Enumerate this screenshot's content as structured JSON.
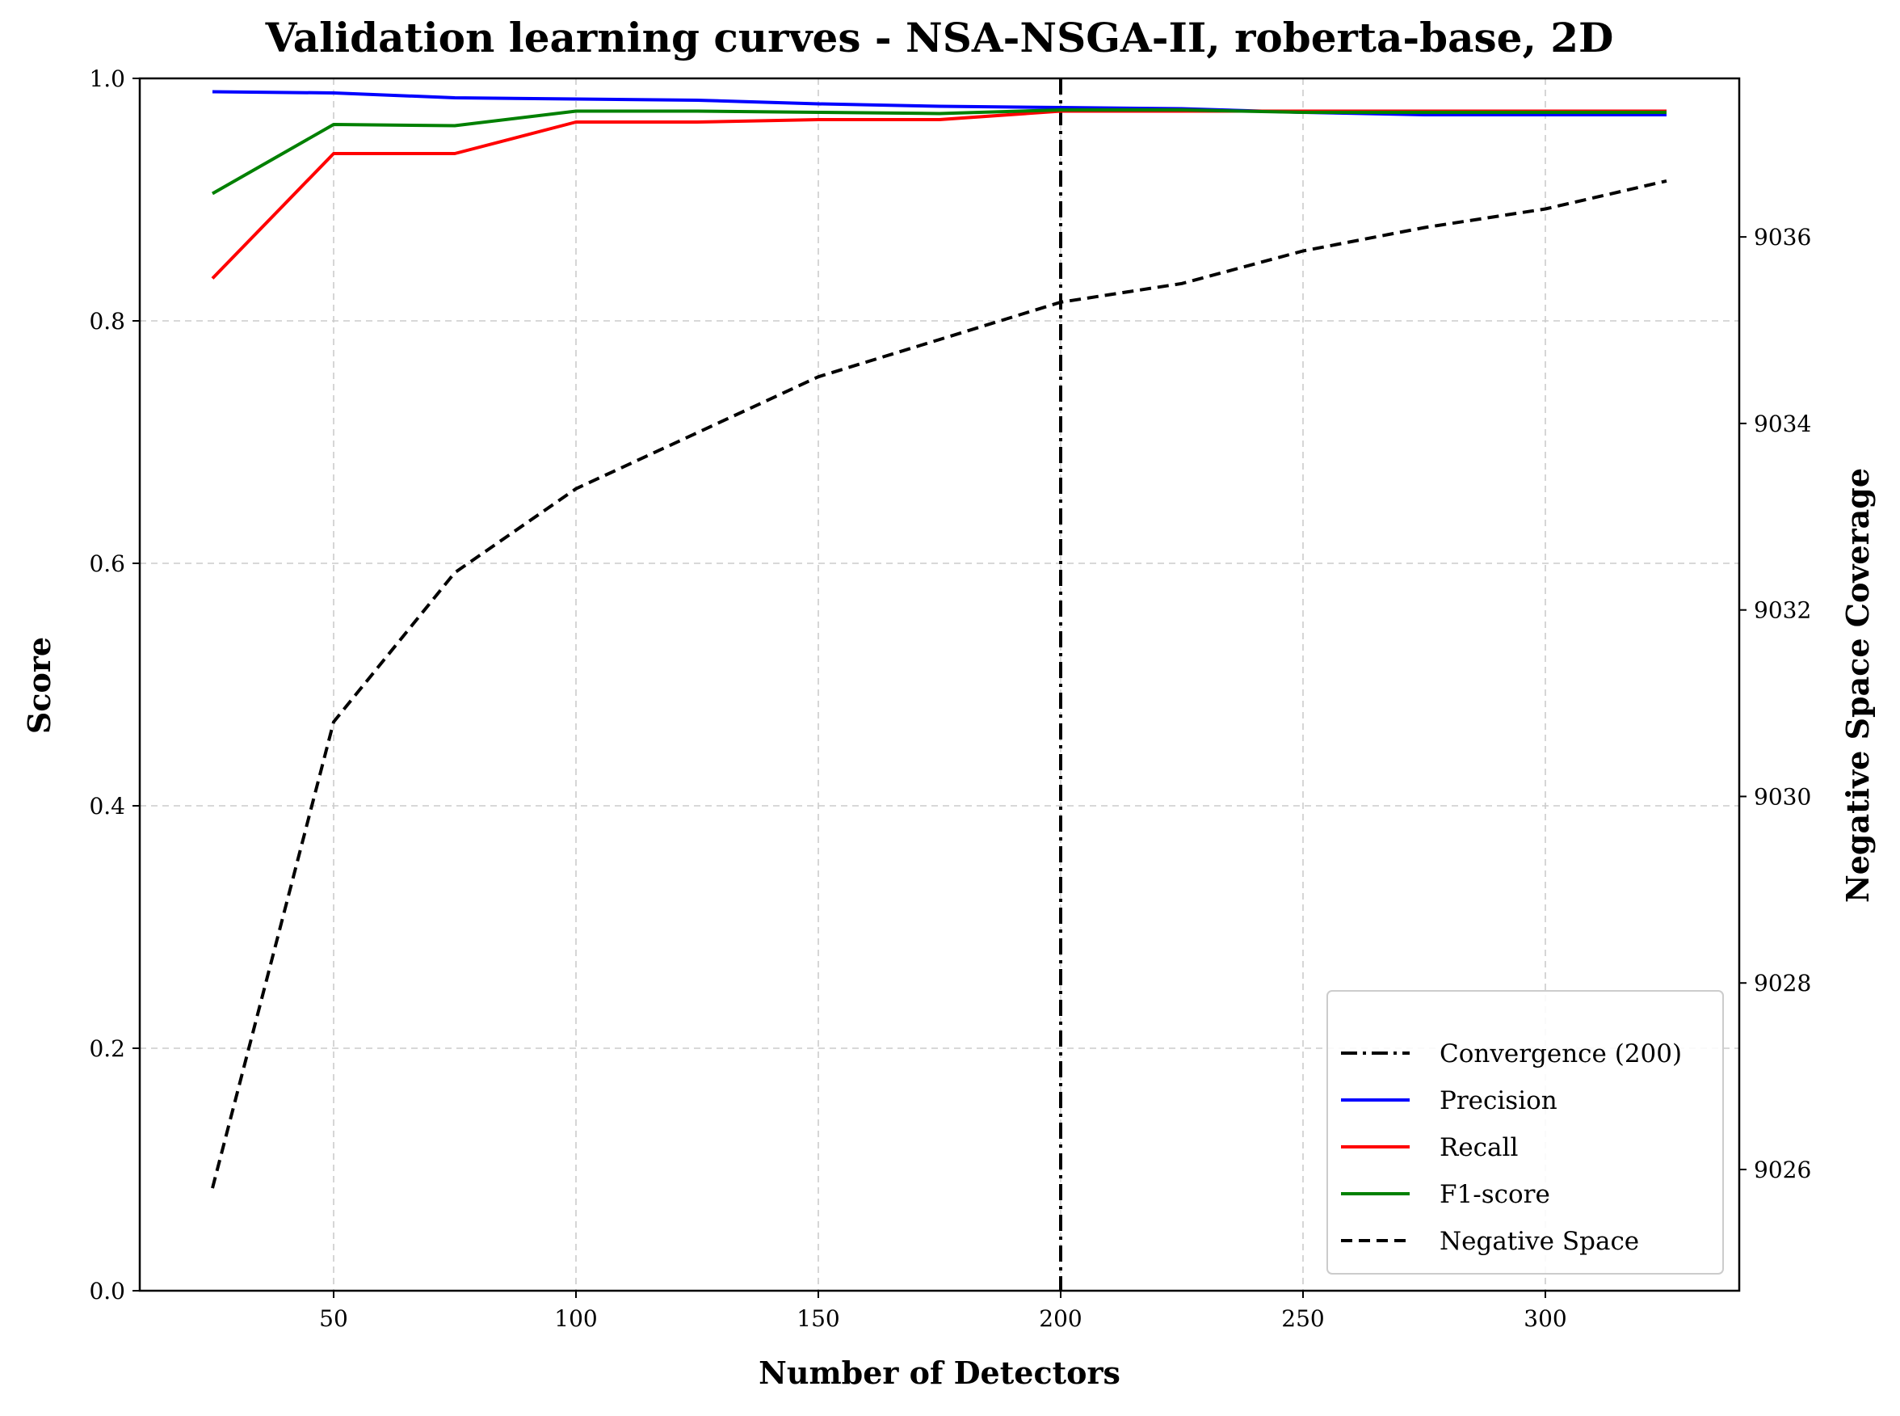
{
  "chart_data": {
    "type": "line",
    "title": "Validation learning curves - NSA-NSGA-II, roberta-base, 2D",
    "xlabel": "Number of Detectors",
    "ylabel": "Score",
    "y2label": "Negative Space Coverage",
    "xlim": [
      10,
      340
    ],
    "ylim": [
      0,
      1
    ],
    "y2lim": [
      9024.7,
      9037.7
    ],
    "x_ticks": [
      50,
      100,
      150,
      200,
      250,
      300
    ],
    "y_ticks": [
      0.0,
      0.2,
      0.4,
      0.6,
      0.8,
      1.0
    ],
    "y_tick_labels": [
      "0.0",
      "0.2",
      "0.4",
      "0.6",
      "0.8",
      "1.0"
    ],
    "y2_ticks": [
      9026,
      9028,
      9030,
      9032,
      9034,
      9036
    ],
    "grid": true,
    "legend_position": "lower-right",
    "convergence": {
      "x": 200,
      "label": "Convergence (200)",
      "color": "#000000",
      "style": "dashdot"
    },
    "x": [
      25,
      50,
      75,
      100,
      125,
      150,
      175,
      200,
      225,
      250,
      275,
      300,
      325
    ],
    "series": [
      {
        "name": "Precision",
        "color": "#0000ff",
        "style": "solid",
        "axis": "left",
        "values": [
          0.989,
          0.988,
          0.984,
          0.983,
          0.982,
          0.979,
          0.977,
          0.976,
          0.975,
          0.972,
          0.97,
          0.97,
          0.97
        ]
      },
      {
        "name": "Recall",
        "color": "#ff0000",
        "style": "solid",
        "axis": "left",
        "values": [
          0.835,
          0.938,
          0.938,
          0.964,
          0.964,
          0.966,
          0.966,
          0.973,
          0.973,
          0.973,
          0.973,
          0.973,
          0.973
        ]
      },
      {
        "name": "F1-score",
        "color": "#008000",
        "style": "solid",
        "axis": "left",
        "values": [
          0.905,
          0.962,
          0.961,
          0.973,
          0.973,
          0.972,
          0.971,
          0.974,
          0.974,
          0.972,
          0.972,
          0.972,
          0.972
        ]
      },
      {
        "name": "Negative Space",
        "color": "#000000",
        "style": "dashed",
        "axis": "right",
        "values": [
          9025.8,
          9030.8,
          9032.4,
          9033.3,
          9033.9,
          9034.5,
          9034.9,
          9035.3,
          9035.5,
          9035.85,
          9036.1,
          9036.3,
          9036.6
        ]
      }
    ]
  }
}
